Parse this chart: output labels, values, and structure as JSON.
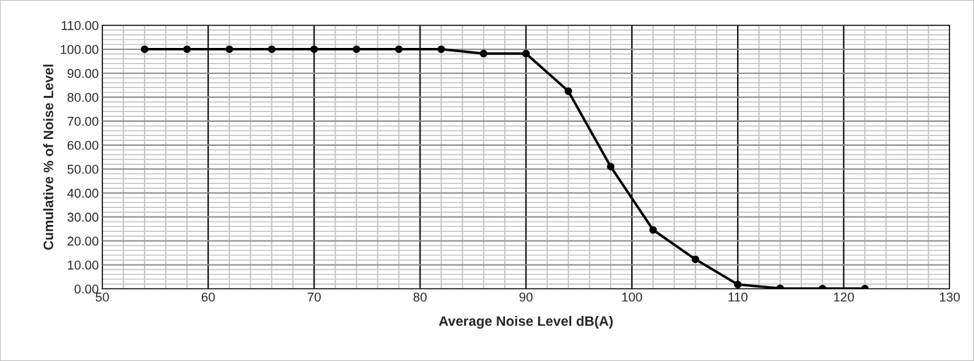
{
  "chart_data": {
    "type": "line",
    "xlabel": "Average Noise Level dB(A)",
    "ylabel": "Cumulative % of Noise Level",
    "x": [
      54,
      58,
      62,
      66,
      70,
      74,
      78,
      82,
      86,
      90,
      94,
      98,
      102,
      106,
      110,
      114,
      118,
      122
    ],
    "series": [
      {
        "color": "#000000",
        "values": [
          100,
          100,
          100,
          100,
          100,
          100,
          100,
          100,
          98.2,
          98.2,
          82.5,
          51,
          24.6,
          12.3,
          1.8,
          0.2,
          0.1,
          0.1
        ]
      }
    ],
    "xlim": [
      50,
      130
    ],
    "xticks": [
      50,
      60,
      70,
      80,
      90,
      100,
      110,
      120,
      130
    ],
    "ylim": [
      0,
      110
    ],
    "yticks": [
      {
        "value": 0,
        "label": "0.00"
      },
      {
        "value": 10,
        "label": "10.00"
      },
      {
        "value": 20,
        "label": "20.00"
      },
      {
        "value": 30,
        "label": "30.00"
      },
      {
        "value": 40,
        "label": "40.00"
      },
      {
        "value": 50,
        "label": "50.00"
      },
      {
        "value": 60,
        "label": "60.00"
      },
      {
        "value": 70,
        "label": "70.00"
      },
      {
        "value": 80,
        "label": "80.00"
      },
      {
        "value": 90,
        "label": "90.00"
      },
      {
        "value": 100,
        "label": "100.00"
      },
      {
        "value": 110,
        "label": "110.00"
      }
    ],
    "grid": true,
    "marker": "circle",
    "line_style": "solid",
    "legend": false
  }
}
